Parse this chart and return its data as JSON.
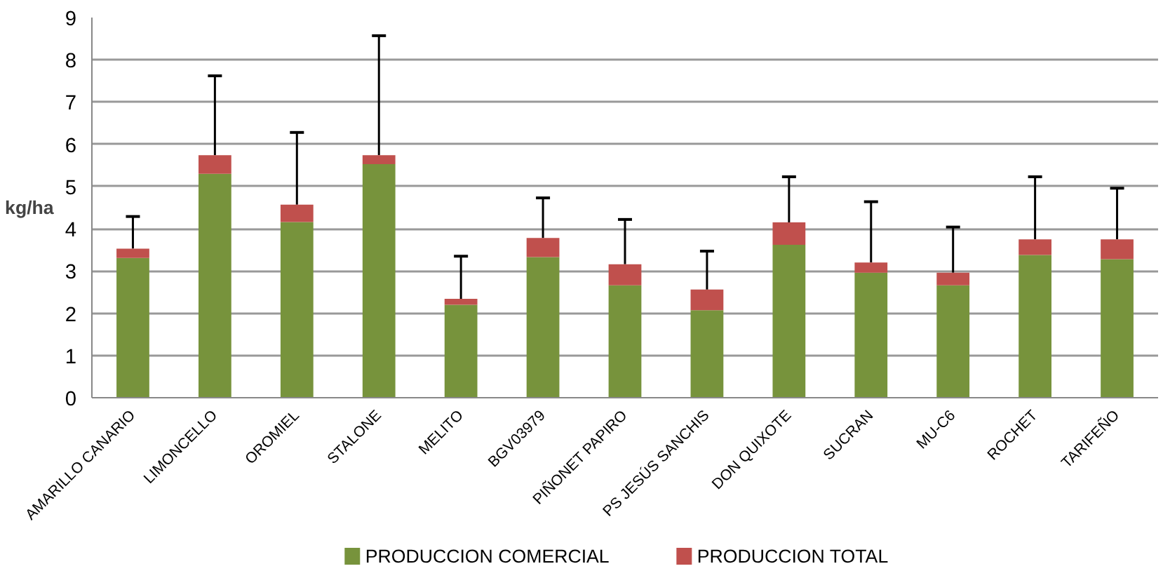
{
  "chart_data": {
    "type": "bar",
    "stacked": true,
    "ylabel": "kg/ha",
    "categories": [
      "AMARILLO CANARIO",
      "LIMONCELLO",
      "OROMIEL",
      "STALONE",
      "MELITO",
      "BGV03979",
      "PIÑONET PAPIRO",
      "PS JESÚS SANCHIS",
      "DON QUIXOTE",
      "SUCRAN",
      "MU-C6",
      "ROCHET",
      "TARIFEÑO"
    ],
    "series": [
      {
        "name": "PRODUCCION COMERCIAL",
        "color": "#77933c",
        "values": [
          3.31,
          5.3,
          4.16,
          5.53,
          2.2,
          3.33,
          2.66,
          2.07,
          3.62,
          2.96,
          2.66,
          3.38,
          3.28
        ]
      },
      {
        "name": "PRODUCCION TOTAL",
        "color": "#c0504d",
        "values": [
          0.22,
          0.44,
          0.41,
          0.21,
          0.14,
          0.45,
          0.5,
          0.49,
          0.53,
          0.24,
          0.3,
          0.37,
          0.47
        ],
        "errors": [
          [
            3.53,
            4.29
          ],
          [
            5.74,
            7.62
          ],
          [
            4.57,
            6.28
          ],
          [
            5.74,
            8.57
          ],
          [
            2.34,
            3.35
          ],
          [
            3.78,
            4.73
          ],
          [
            3.16,
            4.22
          ],
          [
            2.56,
            3.47
          ],
          [
            4.15,
            5.23
          ],
          [
            3.2,
            4.64
          ],
          [
            2.96,
            4.04
          ],
          [
            3.75,
            5.23
          ],
          [
            3.75,
            4.96
          ]
        ]
      }
    ],
    "ylim": [
      0,
      9
    ],
    "yticks": [
      0,
      1,
      2,
      3,
      4,
      5,
      6,
      7,
      8,
      9
    ],
    "grid": "y",
    "legend": "bottom"
  }
}
